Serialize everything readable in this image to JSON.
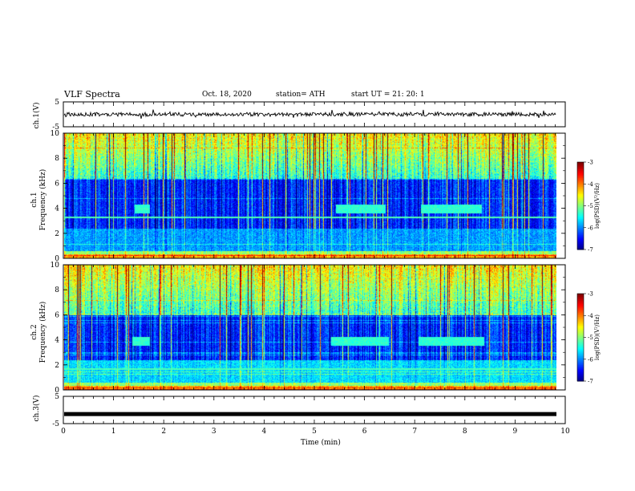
{
  "header": {
    "title": "VLF Spectra",
    "date": "Oct. 18, 2020",
    "station": "station= ATH",
    "start": "start  UT =   21: 20: 1"
  },
  "chart_data": [
    {
      "type": "line",
      "panel": "ch1-voltage",
      "ylabel": "ch.1(V)",
      "ylim": [
        -5,
        5
      ],
      "yticks": [
        "5",
        "-5"
      ],
      "xlim": [
        0,
        10
      ],
      "series": [
        {
          "baseline": 0,
          "noise_amplitude": 1.5
        }
      ]
    },
    {
      "type": "heatmap",
      "panel": "ch1-spectrogram",
      "ylabel": "ch.1\nFrequency  (kHz)",
      "ylim": [
        0,
        10
      ],
      "yticks": [
        "0",
        "2",
        "4",
        "6",
        "8",
        "10"
      ],
      "xlim": [
        0,
        10
      ],
      "colorbar": {
        "label": "log(PSD)(V²/Hz)",
        "range": [
          -7,
          -3
        ],
        "ticks": [
          "-3",
          "-4",
          "-5",
          "-6",
          "-7"
        ]
      },
      "features": [
        {
          "kind": "dark_band",
          "f_khz": [
            2.4,
            6.4
          ]
        },
        {
          "kind": "tone",
          "f_khz": 4.0,
          "t_min": [
            1.4,
            1.7
          ]
        },
        {
          "kind": "tone",
          "f_khz": 4.0,
          "t_min": [
            5.4,
            6.4
          ]
        },
        {
          "kind": "tone",
          "f_khz": 4.0,
          "t_min": [
            7.1,
            8.3
          ]
        },
        {
          "kind": "hum_line",
          "f_khz": 3.3
        }
      ]
    },
    {
      "type": "heatmap",
      "panel": "ch2-spectrogram",
      "ylabel": "ch.2\nFrequency  (kHz)",
      "ylim": [
        0,
        10
      ],
      "yticks": [
        "0",
        "2",
        "4",
        "6",
        "8",
        "10"
      ],
      "xlim": [
        0,
        10
      ],
      "colorbar": {
        "label": "log(PSD)(V²/Hz)",
        "range": [
          -7,
          -3
        ],
        "ticks": [
          "-3",
          "-4",
          "-5",
          "-6",
          "-7"
        ]
      },
      "features": [
        {
          "kind": "dark_band",
          "f_khz": [
            2.4,
            6.0
          ]
        },
        {
          "kind": "tone",
          "f_khz": 3.9,
          "t_min": [
            1.35,
            1.7
          ]
        },
        {
          "kind": "tone",
          "f_khz": 3.9,
          "t_min": [
            5.3,
            6.45
          ]
        },
        {
          "kind": "tone",
          "f_khz": 3.9,
          "t_min": [
            7.05,
            8.35
          ]
        },
        {
          "kind": "hum_line",
          "f_khz": 1.7
        }
      ]
    },
    {
      "type": "line",
      "panel": "ch3-voltage",
      "ylabel": "ch.3(V)",
      "ylim": [
        -5,
        5
      ],
      "yticks": [
        "5",
        "-5"
      ],
      "xlim": [
        0,
        10
      ],
      "xlabel": "Time  (min)",
      "xticks": [
        "0",
        "1",
        "2",
        "3",
        "4",
        "5",
        "6",
        "7",
        "8",
        "9",
        "10"
      ],
      "series": [
        {
          "baseline": -1.5,
          "noise_amplitude": 0.05
        }
      ]
    }
  ]
}
